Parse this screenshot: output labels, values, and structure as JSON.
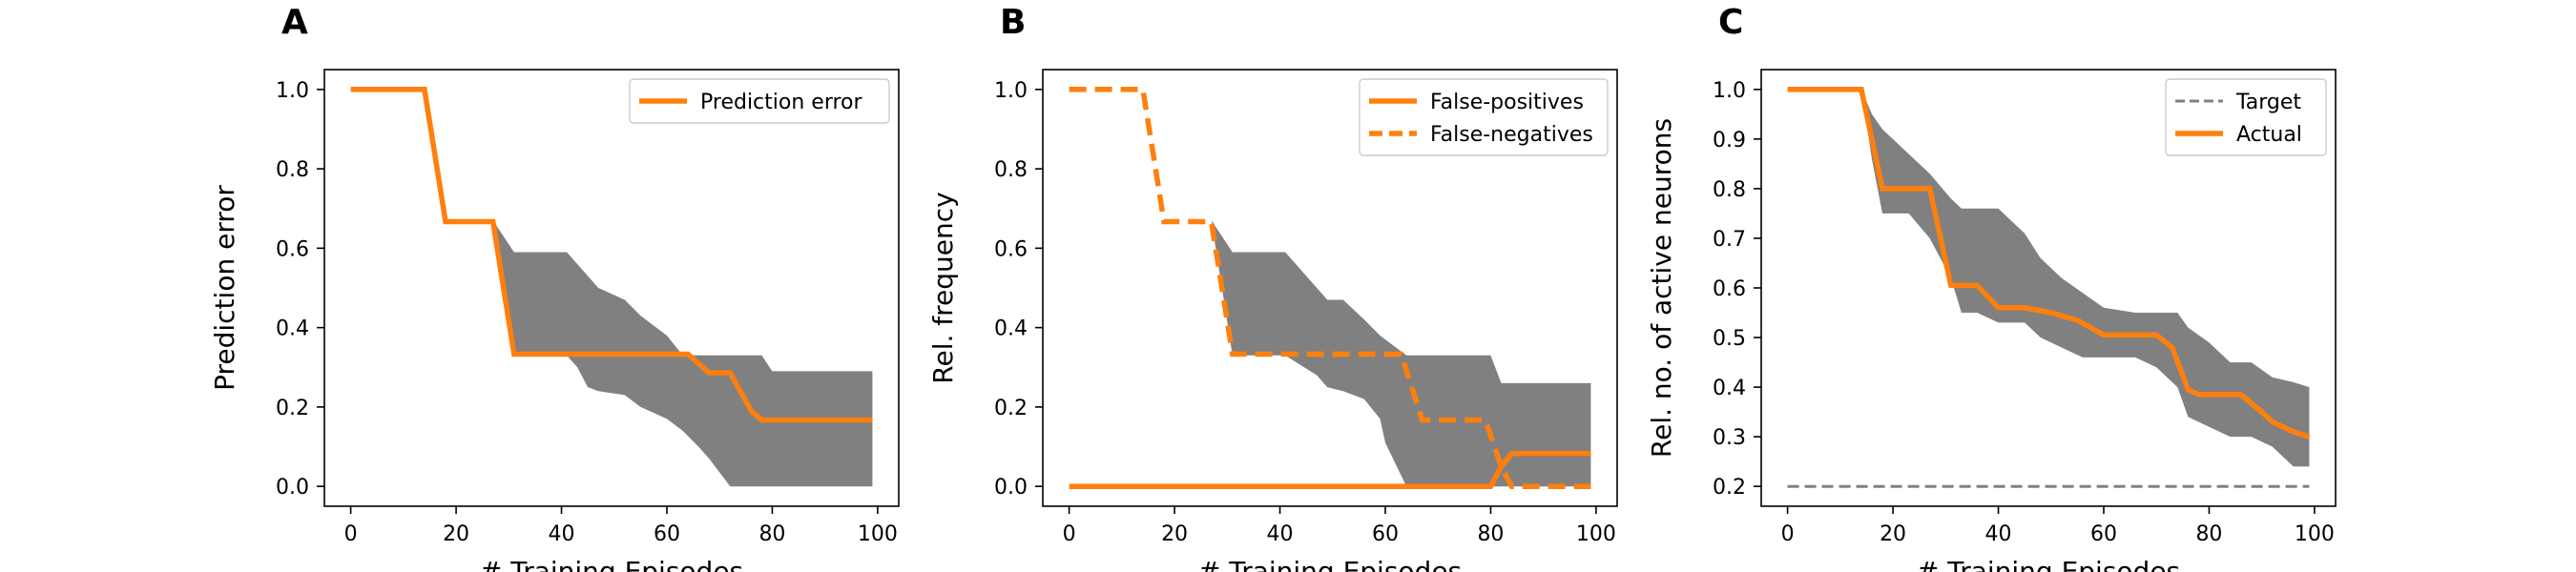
{
  "chart_data": [
    {
      "type": "line",
      "panel_label": "A",
      "title": "",
      "xlabel": "# Training Episodes",
      "ylabel": "Prediction error",
      "xlim": [
        -5,
        104
      ],
      "ylim": [
        -0.05,
        1.05
      ],
      "xticks": [
        0,
        20,
        40,
        60,
        80,
        100
      ],
      "yticks": [
        0.0,
        0.2,
        0.4,
        0.6,
        0.8,
        1.0
      ],
      "tick_decimals": 1,
      "grid": false,
      "legend_position": "top-right",
      "bands": [
        {
          "color": "#808080",
          "x": [
            27,
            31,
            41,
            43,
            45,
            47,
            52,
            55,
            60,
            63,
            66,
            68,
            72,
            78,
            80,
            84,
            99
          ],
          "upper": [
            0.67,
            0.59,
            0.59,
            0.56,
            0.53,
            0.5,
            0.47,
            0.43,
            0.38,
            0.33,
            0.33,
            0.33,
            0.33,
            0.33,
            0.29,
            0.29,
            0.29
          ],
          "lower": [
            0.67,
            0.33,
            0.33,
            0.3,
            0.25,
            0.24,
            0.23,
            0.2,
            0.17,
            0.14,
            0.1,
            0.07,
            0.0,
            0.0,
            0.0,
            0.0,
            0.0
          ]
        }
      ],
      "series": [
        {
          "name": "Prediction error",
          "color": "#ff7f0e",
          "dash": "solid",
          "x": [
            0,
            14,
            18,
            27,
            31,
            64,
            68,
            72,
            76,
            78,
            99
          ],
          "y": [
            1.0,
            1.0,
            0.667,
            0.667,
            0.333,
            0.333,
            0.286,
            0.286,
            0.19,
            0.167,
            0.167
          ]
        }
      ]
    },
    {
      "type": "line",
      "panel_label": "B",
      "title": "",
      "xlabel": "# Training Episodes",
      "ylabel": "Rel. frequency",
      "xlim": [
        -5,
        104
      ],
      "ylim": [
        -0.05,
        1.05
      ],
      "xticks": [
        0,
        20,
        40,
        60,
        80,
        100
      ],
      "yticks": [
        0.0,
        0.2,
        0.4,
        0.6,
        0.8,
        1.0
      ],
      "tick_decimals": 1,
      "grid": false,
      "legend_position": "top-right",
      "bands": [
        {
          "color": "#808080",
          "x": [
            27,
            31,
            41,
            47,
            49,
            52,
            56,
            59,
            60,
            64,
            68,
            72,
            80,
            82,
            84,
            99
          ],
          "upper": [
            0.67,
            0.59,
            0.59,
            0.5,
            0.47,
            0.47,
            0.42,
            0.38,
            0.37,
            0.33,
            0.33,
            0.33,
            0.33,
            0.26,
            0.26,
            0.26
          ],
          "lower": [
            0.67,
            0.33,
            0.33,
            0.28,
            0.25,
            0.24,
            0.22,
            0.17,
            0.11,
            0.0,
            0.0,
            0.0,
            0.0,
            0.0,
            0.0,
            0.0
          ]
        }
      ],
      "series": [
        {
          "name": "False-positives",
          "color": "#ff7f0e",
          "dash": "solid",
          "x": [
            0,
            80,
            82,
            84,
            99
          ],
          "y": [
            0.0,
            0.0,
            0.05,
            0.083,
            0.083
          ]
        },
        {
          "name": "False-negatives",
          "color": "#ff7f0e",
          "dash": "dashed",
          "x": [
            0,
            14,
            18,
            27,
            31,
            63,
            67,
            79,
            82,
            84,
            99
          ],
          "y": [
            1.0,
            1.0,
            0.667,
            0.667,
            0.333,
            0.333,
            0.167,
            0.167,
            0.05,
            0.0,
            0.0
          ]
        }
      ]
    },
    {
      "type": "line",
      "panel_label": "C",
      "title": "",
      "xlabel": "# Training Episodes",
      "ylabel": "Rel. no. of active neurons",
      "xlim": [
        -5,
        104
      ],
      "ylim": [
        0.16,
        1.04
      ],
      "xticks": [
        0,
        20,
        40,
        60,
        80,
        100
      ],
      "yticks": [
        0.2,
        0.3,
        0.4,
        0.5,
        0.6,
        0.7,
        0.8,
        0.9,
        1.0
      ],
      "tick_decimals": 1,
      "grid": false,
      "legend_position": "top-right",
      "bands": [
        {
          "color": "#808080",
          "x": [
            14,
            16,
            18,
            23,
            27,
            31,
            33,
            36,
            40,
            45,
            48,
            52,
            56,
            60,
            66,
            70,
            74,
            76,
            80,
            84,
            88,
            92,
            96,
            99
          ],
          "upper": [
            1.0,
            0.95,
            0.92,
            0.87,
            0.83,
            0.78,
            0.76,
            0.76,
            0.76,
            0.71,
            0.66,
            0.62,
            0.59,
            0.56,
            0.55,
            0.55,
            0.55,
            0.52,
            0.49,
            0.45,
            0.45,
            0.42,
            0.41,
            0.4
          ],
          "lower": [
            1.0,
            0.86,
            0.75,
            0.75,
            0.7,
            0.62,
            0.55,
            0.55,
            0.53,
            0.53,
            0.5,
            0.48,
            0.46,
            0.46,
            0.46,
            0.44,
            0.4,
            0.34,
            0.32,
            0.3,
            0.3,
            0.28,
            0.24,
            0.24
          ]
        }
      ],
      "series": [
        {
          "name": "Target",
          "color": "#808080",
          "dash": "dashed",
          "x": [
            0,
            99
          ],
          "y": [
            0.2,
            0.2
          ]
        },
        {
          "name": "Actual",
          "color": "#ff7f0e",
          "dash": "solid",
          "x": [
            0,
            14,
            18,
            27,
            31,
            36,
            40,
            45,
            50,
            55,
            60,
            65,
            70,
            73,
            76,
            78,
            82,
            86,
            90,
            92,
            96,
            99
          ],
          "y": [
            1.0,
            1.0,
            0.8,
            0.8,
            0.605,
            0.605,
            0.56,
            0.56,
            0.55,
            0.535,
            0.505,
            0.505,
            0.505,
            0.48,
            0.395,
            0.385,
            0.385,
            0.385,
            0.35,
            0.33,
            0.31,
            0.3
          ]
        }
      ]
    }
  ]
}
